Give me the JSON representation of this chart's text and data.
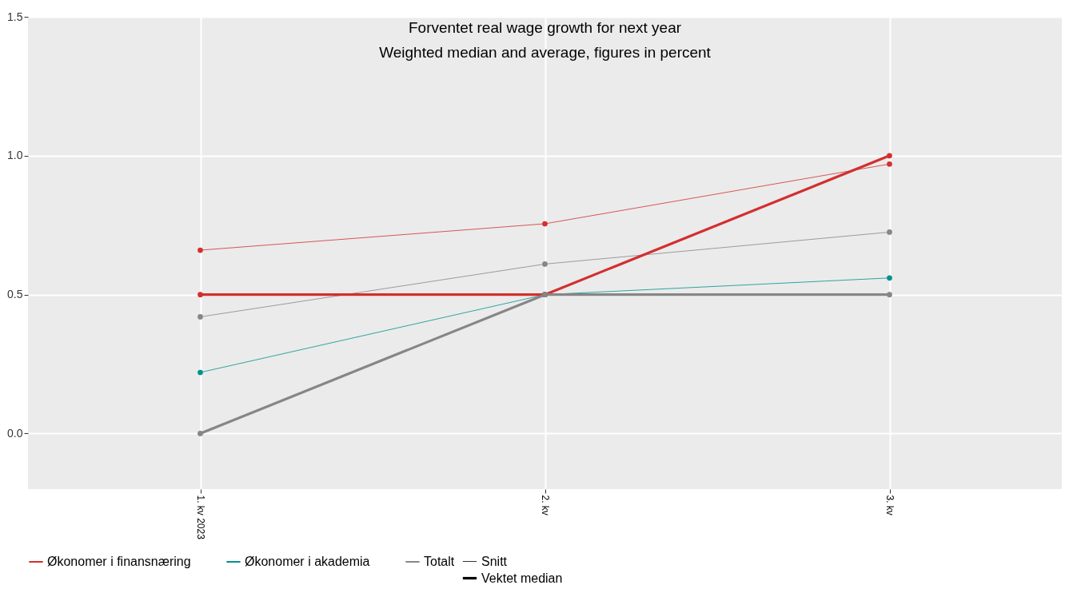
{
  "chart_data": {
    "type": "line",
    "title": "Forventet real wage growth for next year",
    "subtitle": "Weighted median and average, figures in percent",
    "categories": [
      "1. kv 2023",
      "2. kv",
      "3. kv"
    ],
    "annotations": [
      "Snitt",
      "Vektet median"
    ],
    "series": [
      {
        "name": "Økonomer i finansnæring",
        "color": "#d32f2f",
        "values": [
          0.66,
          0.755,
          0.97
        ]
      },
      {
        "name": "Økonomer i akademia",
        "color": "#00918f",
        "values": [
          0.22,
          0.5,
          0.56
        ]
      },
      {
        "name": "Totalt",
        "color": "#868686",
        "values": [
          0.42,
          0.61,
          0.725
        ]
      },
      {
        "color": "#d32f2f",
        "values": [
          0.5,
          0.5,
          1.0
        ]
      },
      {
        "color": "#868686",
        "values": [
          0.0,
          0.5,
          0.5
        ]
      }
    ],
    "ylim": [
      -0.2,
      1.5
    ],
    "yticks": [
      {
        "value": 0,
        "label": "0.0"
      },
      0.5,
      {
        "value": 1,
        "label": "1.0"
      },
      1.5
    ],
    "grid": true,
    "legend": "bottom",
    "marker": "circle",
    "line_style": "solid"
  }
}
